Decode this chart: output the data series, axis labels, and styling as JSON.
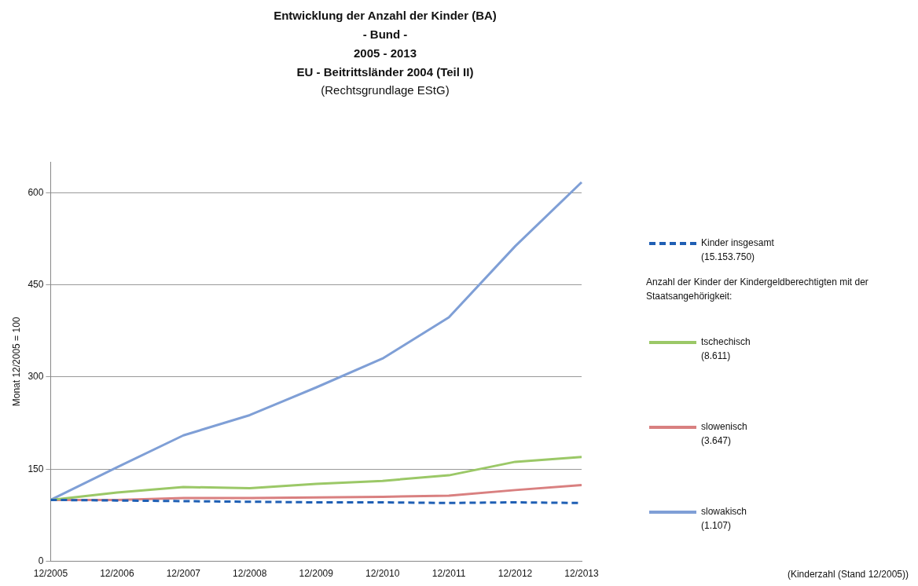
{
  "chart_data": {
    "type": "line",
    "title": "Entwicklung der Anzahl der Kinder (BA)\n- Bund -\n2005 - 2013\nEU - Beitrittsländer 2004 (Teil II)",
    "subtitle": "(Rechtsgrundlage EStG)",
    "ylabel": "Monat 12/2005 = 100",
    "legend_title": "Anzahl der Kinder der Kindergeldberechtigten mit der Staatsangehörigkeit:",
    "annotations": [
      "(Kinderzahl (Stand 12/2005))"
    ],
    "categories": [
      "12/2005",
      "12/2006",
      "12/2007",
      "12/2008",
      "12/2009",
      "12/2010",
      "12/2011",
      "12/2012",
      "12/2013"
    ],
    "series": [
      {
        "name": "Kinder insgesamt\n(15.153.750)",
        "color": "#1f5fb4",
        "line_style": "dashed",
        "values": [
          100,
          99,
          98,
          97,
          96,
          96,
          95,
          96,
          95
        ]
      },
      {
        "name": "tschechisch\n(8.611)",
        "color": "#9bc867",
        "values": [
          100,
          112,
          121,
          119,
          126,
          131,
          140,
          162,
          170
        ]
      },
      {
        "name": "slowenisch\n(3.647)",
        "color": "#d98080",
        "values": [
          100,
          100,
          103,
          103,
          104,
          105,
          107,
          116,
          124
        ]
      },
      {
        "name": "slowakisch\n(1.107)",
        "color": "#7f9fd6",
        "values": [
          100,
          153,
          205,
          238,
          283,
          330,
          397,
          513,
          617
        ]
      }
    ],
    "ylim": [
      0,
      650
    ],
    "yticks": [
      0,
      150,
      300,
      450,
      600
    ],
    "grid": "y",
    "legend": "right",
    "marker": "none"
  }
}
